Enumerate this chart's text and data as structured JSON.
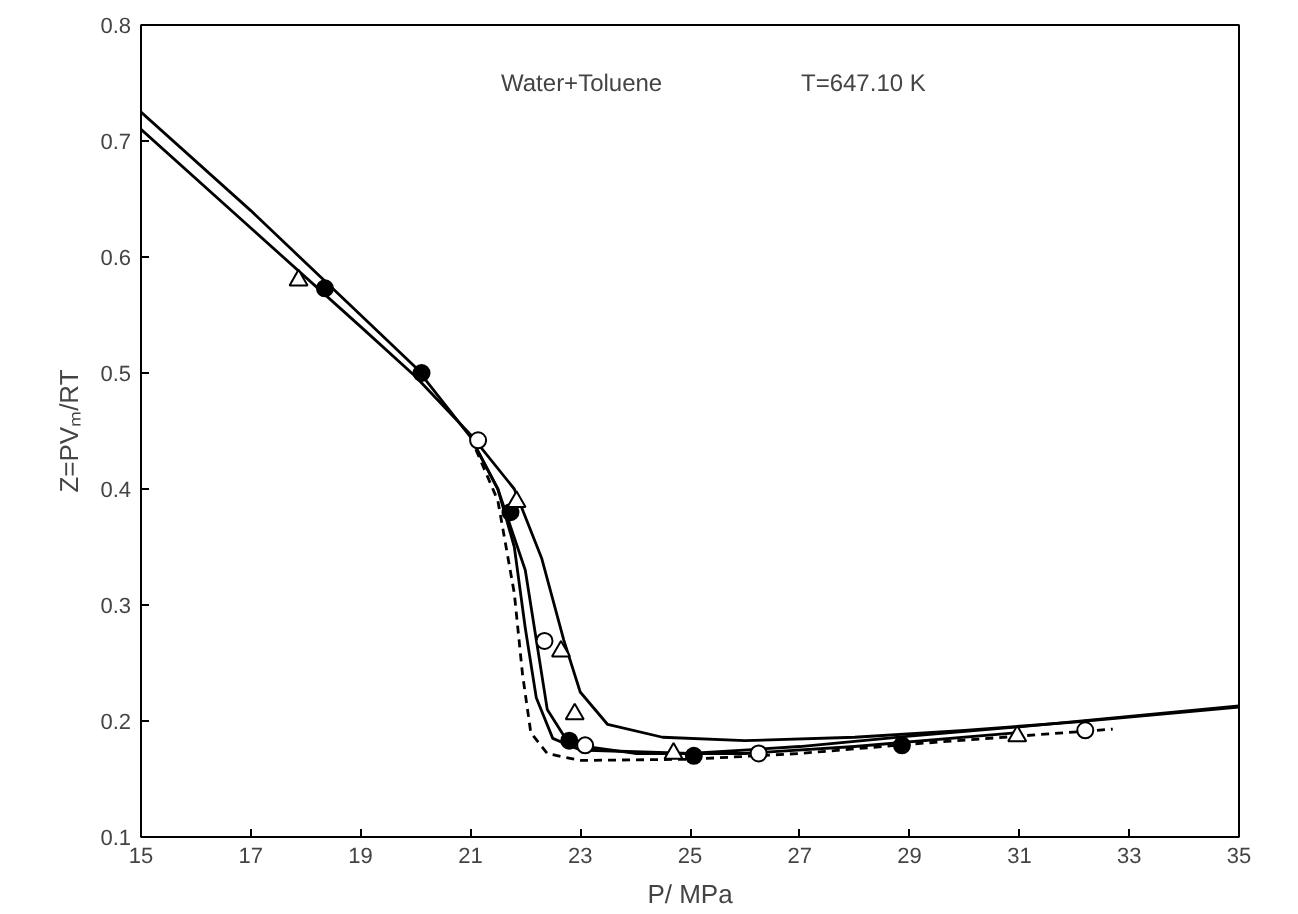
{
  "chart_data": {
    "type": "line",
    "xlabel": "P/ MPa",
    "ylabel": "Z=PVₘ/RT",
    "xlim": [
      15,
      35
    ],
    "ylim": [
      0.1,
      0.8
    ],
    "xticks": [
      15,
      17,
      19,
      21,
      23,
      25,
      27,
      29,
      31,
      33,
      35
    ],
    "yticks": [
      0.1,
      0.2,
      0.3,
      0.4,
      0.5,
      0.6,
      0.7,
      0.8
    ],
    "grid": false,
    "annotations": [
      "Water+Toluene",
      "T=647.10 K"
    ],
    "series": [
      {
        "color": "#000000",
        "line_style": "solid",
        "marker": "none",
        "x": [
          15,
          17,
          19,
          20,
          21,
          21.5,
          21.8,
          22.0,
          22.2,
          22.5,
          23,
          25,
          27,
          29,
          31,
          33,
          35
        ],
        "values": [
          0.725,
          0.64,
          0.55,
          0.505,
          0.445,
          0.4,
          0.35,
          0.28,
          0.22,
          0.185,
          0.175,
          0.172,
          0.178,
          0.187,
          0.195,
          0.204,
          0.213
        ]
      },
      {
        "color": "#000000",
        "line_style": "solid",
        "marker": "none",
        "x": [
          15,
          17,
          19,
          20,
          21,
          21.8,
          22.3,
          22.7,
          23.0,
          23.5,
          24.5,
          26,
          28,
          30,
          32,
          35
        ],
        "values": [
          0.71,
          0.625,
          0.54,
          0.497,
          0.447,
          0.4,
          0.34,
          0.27,
          0.225,
          0.197,
          0.186,
          0.183,
          0.186,
          0.192,
          0.199,
          0.212
        ]
      },
      {
        "color": "#000000",
        "line_style": "solid",
        "marker": "none",
        "x": [
          21,
          21.5,
          22,
          22.2,
          22.4,
          22.8,
          24,
          26,
          28,
          31
        ],
        "values": [
          0.445,
          0.4,
          0.33,
          0.27,
          0.21,
          0.18,
          0.172,
          0.172,
          0.178,
          0.19
        ]
      },
      {
        "color": "#000000",
        "line_style": "dashed",
        "marker": "none",
        "x": [
          21,
          21.5,
          21.8,
          21.95,
          22.1,
          22.4,
          23,
          25,
          27,
          29,
          31,
          32.7
        ],
        "values": [
          0.445,
          0.39,
          0.31,
          0.24,
          0.19,
          0.172,
          0.166,
          0.167,
          0.172,
          0.18,
          0.187,
          0.193
        ]
      },
      {
        "type": "scatter",
        "color": "#000000",
        "marker": "circle",
        "x": [
          18.35,
          20.11,
          21.73,
          22.8,
          25.07,
          28.86
        ],
        "values": [
          0.573,
          0.5,
          0.38,
          0.183,
          0.17,
          0.179
        ]
      },
      {
        "type": "scatter",
        "color": "#ffffff",
        "marker": "circle",
        "x": [
          21.14,
          22.35,
          23.09,
          26.25,
          32.2
        ],
        "values": [
          0.442,
          0.269,
          0.179,
          0.172,
          0.192
        ]
      },
      {
        "type": "scatter",
        "color": "#ffffff",
        "marker": "triangle",
        "x": [
          17.87,
          21.84,
          22.65,
          22.9,
          24.7,
          30.96
        ],
        "values": [
          0.58,
          0.389,
          0.26,
          0.206,
          0.172,
          0.187
        ]
      }
    ]
  }
}
